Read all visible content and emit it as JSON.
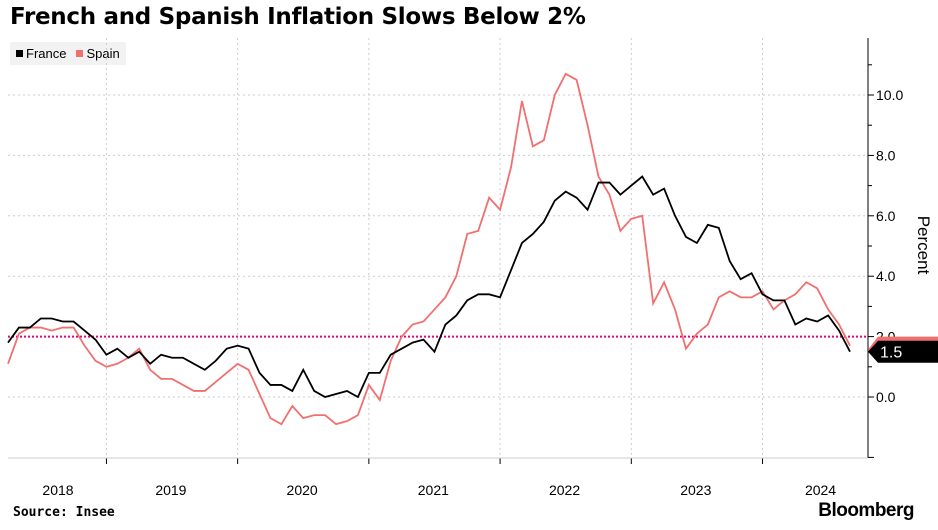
{
  "title": "French and Spanish Inflation Slows Below 2%",
  "source": "Source: Insee",
  "brand": "Bloomberg",
  "chart_data": {
    "type": "line",
    "title": "French and Spanish Inflation Slows Below 2%",
    "ylabel": "Percent",
    "ylim": [
      -2,
      12
    ],
    "yticks": [
      "0.0",
      "2.0",
      "4.0",
      "6.0",
      "8.0",
      "10.0"
    ],
    "xticks": [
      "2018",
      "2019",
      "2020",
      "2021",
      "2022",
      "2023",
      "2024"
    ],
    "x_start": "2018-04",
    "x_end": "2024-09",
    "reference_line": {
      "value": 2.0,
      "color": "#e6007e"
    },
    "grid": true,
    "legend": "top-left",
    "end_labels": {
      "France": "1.5"
    },
    "series": [
      {
        "name": "France",
        "color": "#000000",
        "values": [
          1.8,
          2.3,
          2.3,
          2.6,
          2.6,
          2.5,
          2.5,
          2.2,
          1.9,
          1.4,
          1.6,
          1.3,
          1.5,
          1.1,
          1.4,
          1.3,
          1.3,
          1.1,
          0.9,
          1.2,
          1.6,
          1.7,
          1.6,
          0.8,
          0.4,
          0.4,
          0.2,
          0.9,
          0.2,
          0.0,
          0.1,
          0.2,
          0.0,
          0.8,
          0.8,
          1.4,
          1.6,
          1.8,
          1.9,
          1.5,
          2.4,
          2.7,
          3.2,
          3.4,
          3.4,
          3.3,
          4.2,
          5.1,
          5.4,
          5.8,
          6.5,
          6.8,
          6.6,
          6.2,
          7.1,
          7.1,
          6.7,
          7.0,
          7.3,
          6.7,
          6.9,
          6.0,
          5.3,
          5.1,
          5.7,
          5.6,
          4.5,
          3.9,
          4.1,
          3.4,
          3.2,
          3.2,
          2.4,
          2.6,
          2.5,
          2.7,
          2.2,
          1.5
        ]
      },
      {
        "name": "Spain",
        "color": "#f07070",
        "values": [
          1.1,
          2.1,
          2.3,
          2.3,
          2.2,
          2.3,
          2.3,
          1.7,
          1.2,
          1.0,
          1.1,
          1.3,
          1.6,
          0.9,
          0.6,
          0.6,
          0.4,
          0.2,
          0.2,
          0.5,
          0.8,
          1.1,
          0.9,
          0.1,
          -0.7,
          -0.9,
          -0.3,
          -0.7,
          -0.6,
          -0.6,
          -0.9,
          -0.8,
          -0.6,
          0.4,
          -0.1,
          1.2,
          2.0,
          2.4,
          2.5,
          2.9,
          3.3,
          4.0,
          5.4,
          5.5,
          6.6,
          6.2,
          7.6,
          9.8,
          8.3,
          8.5,
          10.0,
          10.7,
          10.5,
          9.0,
          7.3,
          6.7,
          5.5,
          5.9,
          6.0,
          3.1,
          3.8,
          2.9,
          1.6,
          2.1,
          2.4,
          3.3,
          3.5,
          3.3,
          3.3,
          3.5,
          2.9,
          3.2,
          3.4,
          3.8,
          3.6,
          2.9,
          2.4,
          1.7
        ]
      }
    ]
  }
}
